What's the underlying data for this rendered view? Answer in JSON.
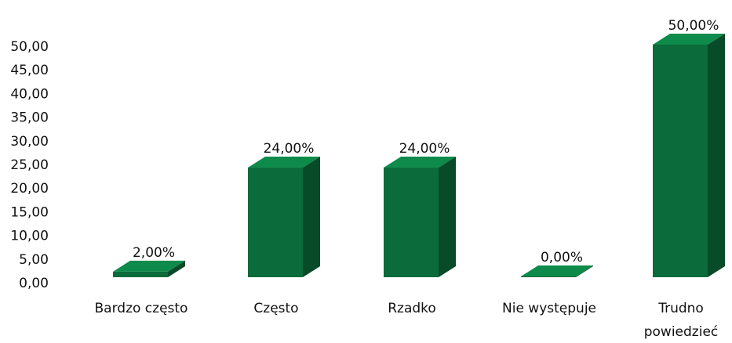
{
  "chart_data": {
    "type": "bar3d",
    "categories": [
      "Bardzo często",
      "Często",
      "Rzadko",
      "Nie występuje",
      "Trudno powiedzieć"
    ],
    "values": [
      2,
      24,
      24,
      0,
      50
    ],
    "value_labels": [
      "2,00%",
      "24,00%",
      "24,00%",
      "0,00%",
      "50,00%"
    ],
    "color": "#0b6b3a",
    "ylim": [
      0,
      50
    ],
    "yticks": [
      {
        "value": 0,
        "label": "0,00"
      },
      {
        "value": 5,
        "label": "5,00"
      },
      {
        "value": 10,
        "label": "10,00"
      },
      {
        "value": 15,
        "label": "15,00"
      },
      {
        "value": 20,
        "label": "20,00"
      },
      {
        "value": 25,
        "label": "25,00"
      },
      {
        "value": 30,
        "label": "30,00"
      },
      {
        "value": 35,
        "label": "35,00"
      },
      {
        "value": 40,
        "label": "40,00"
      },
      {
        "value": 45,
        "label": "45,00"
      },
      {
        "value": 50,
        "label": "50,00"
      }
    ]
  }
}
